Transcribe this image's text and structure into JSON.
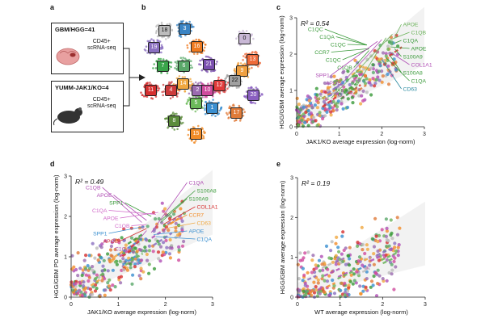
{
  "panel_letters": [
    "a",
    "b",
    "c",
    "d",
    "e"
  ],
  "schematic": {
    "box1": {
      "title": "GBM/HGG=41",
      "subtitle": "CD45+",
      "method": "scRNA-seq"
    },
    "box2": {
      "title": "YUMM-JAK1/KO=4",
      "subtitle": "CD45+",
      "method": "scRNA-seq"
    }
  },
  "umap": {
    "clusters": [
      "0",
      "1",
      "2",
      "3",
      "4",
      "5",
      "6",
      "7",
      "8",
      "9",
      "10",
      "11",
      "12",
      "13",
      "14",
      "15",
      "16",
      "17",
      "18",
      "19",
      "20",
      "21",
      "22"
    ],
    "cluster_colors": {
      "0": "#c9b8d6",
      "1": "#3a8fd0",
      "2": "#9b6bb0",
      "3": "#3a84c4",
      "4": "#cc3b3b",
      "5": "#6cba5a",
      "6": "#5aa86a",
      "7": "#3aa54a",
      "8": "#5b8c3a",
      "9": "#f0a040",
      "10": "#cf4b9d",
      "11": "#d63030",
      "12": "#e23c3c",
      "13": "#ee6a3a",
      "14": "#f0a840",
      "15": "#f28c28",
      "16": "#f07a20",
      "17": "#e07b39",
      "18": "#bcbcbc",
      "19": "#8a6fc0",
      "20": "#8a5fc0",
      "21": "#7b4fb0",
      "22": "#a0a0a0"
    }
  },
  "chart_data": [
    {
      "panel": "c",
      "type": "scatter",
      "title": "R² = 0.54",
      "r2": 0.54,
      "xlabel": "JAK1/KO average expression (log-norm)",
      "ylabel": "HGG/GBM average expression (log-norm)",
      "xlim": [
        0,
        3
      ],
      "ylim": [
        0,
        3
      ],
      "xticks": [
        0,
        1,
        2,
        3
      ],
      "yticks": [
        0,
        1,
        2,
        3
      ],
      "annotations": [
        {
          "text": "C1QC",
          "x": 1.65,
          "y": 2.25,
          "color": "#3a9a3a"
        },
        {
          "text": "C1QA",
          "x": 1.65,
          "y": 2.25,
          "color": "#3a9a3a"
        },
        {
          "text": "C1QC",
          "x": 1.65,
          "y": 2.25,
          "color": "#3a9a3a"
        },
        {
          "text": "CCR7",
          "x": 1.7,
          "y": 2.15,
          "color": "#3a9a3a"
        },
        {
          "text": "C1QC",
          "x": 1.7,
          "y": 2.15,
          "color": "#3a9a3a"
        },
        {
          "text": "C1QB",
          "x": 1.7,
          "y": 2.1,
          "color": "#3a9a3a"
        },
        {
          "text": "SPP1",
          "x": 1.9,
          "y": 2.35,
          "color": "#b04fb5"
        },
        {
          "text": "APOE",
          "x": 2.0,
          "y": 2.4,
          "color": "#b04fb5"
        },
        {
          "text": "APOE",
          "x": 2.1,
          "y": 2.45,
          "color": "#6bb35a"
        },
        {
          "text": "SPP1",
          "x": 2.25,
          "y": 2.55,
          "color": "#6bb35a"
        },
        {
          "text": "APOE",
          "x": 2.3,
          "y": 2.45,
          "color": "#6bb35a"
        },
        {
          "text": "C1QB",
          "x": 2.1,
          "y": 2.35,
          "color": "#6bb35a"
        },
        {
          "text": "C1QA",
          "x": 2.3,
          "y": 2.3,
          "color": "#3a9a3a"
        },
        {
          "text": "APOE",
          "x": 2.2,
          "y": 2.2,
          "color": "#3a9a3a"
        },
        {
          "text": "S100A9",
          "x": 2.3,
          "y": 2.15,
          "color": "#3a9a3a"
        },
        {
          "text": "COL1A1",
          "x": 2.2,
          "y": 2.05,
          "color": "#b04fb5"
        },
        {
          "text": "S100A8",
          "x": 2.2,
          "y": 1.95,
          "color": "#3a9a3a"
        },
        {
          "text": "C1QA",
          "x": 2.1,
          "y": 1.9,
          "color": "#3a9a3a"
        },
        {
          "text": "CD63",
          "x": 2.0,
          "y": 1.85,
          "color": "#2a8aa0"
        }
      ]
    },
    {
      "panel": "d",
      "type": "scatter",
      "title": "R² = 0.49",
      "r2": 0.49,
      "xlabel": "JAK1/KO average expression (log-norm)",
      "ylabel": "HGG/GBM PD average expression (log-norm)",
      "xlim": [
        0,
        3
      ],
      "ylim": [
        0,
        3
      ],
      "xticks": [
        0,
        1,
        2,
        3
      ],
      "yticks": [
        0,
        1,
        2,
        3
      ],
      "annotations": [
        {
          "text": "C1QB",
          "x": 1.5,
          "y": 1.85,
          "color": "#b04fb5"
        },
        {
          "text": "APOE",
          "x": 1.6,
          "y": 1.9,
          "color": "#b04fb5"
        },
        {
          "text": "SPP1",
          "x": 1.7,
          "y": 2.0,
          "color": "#3a9a3a"
        },
        {
          "text": "C1QA",
          "x": 1.8,
          "y": 2.05,
          "color": "#d068c8"
        },
        {
          "text": "APOE",
          "x": 1.85,
          "y": 2.1,
          "color": "#d068c8"
        },
        {
          "text": "C1QB",
          "x": 1.6,
          "y": 1.8,
          "color": "#d068c8"
        },
        {
          "text": "SPP1",
          "x": 1.55,
          "y": 1.75,
          "color": "#3a8fd0"
        },
        {
          "text": "APOE",
          "x": 1.6,
          "y": 1.7,
          "color": "#d63030"
        },
        {
          "text": "C1QA",
          "x": 1.6,
          "y": 1.65,
          "color": "#b04fb5"
        },
        {
          "text": "C1QA",
          "x": 1.7,
          "y": 1.6,
          "color": "#b04fb5"
        },
        {
          "text": "S100A8",
          "x": 1.9,
          "y": 1.9,
          "color": "#3a9a3a"
        },
        {
          "text": "S100A9",
          "x": 1.9,
          "y": 1.85,
          "color": "#3a9a3a"
        },
        {
          "text": "COL1A1",
          "x": 1.95,
          "y": 1.8,
          "color": "#d63030"
        },
        {
          "text": "CCR7",
          "x": 2.0,
          "y": 1.75,
          "color": "#f28c28"
        },
        {
          "text": "CD63",
          "x": 2.0,
          "y": 1.7,
          "color": "#f0a840"
        },
        {
          "text": "APOE",
          "x": 1.75,
          "y": 1.55,
          "color": "#3a8fd0"
        },
        {
          "text": "C1QA",
          "x": 1.8,
          "y": 1.5,
          "color": "#3a8fd0"
        }
      ]
    },
    {
      "panel": "e",
      "type": "scatter",
      "title": "R² = 0.19",
      "r2": 0.19,
      "xlabel": "WT average expression (log-norm)",
      "ylabel": "HGG/GBM average expression (log-norm)",
      "xlim": [
        0,
        3
      ],
      "ylim": [
        0,
        3
      ],
      "xticks": [
        0,
        1,
        2,
        3
      ],
      "yticks": [
        0,
        1,
        2,
        3
      ],
      "annotations": []
    }
  ]
}
